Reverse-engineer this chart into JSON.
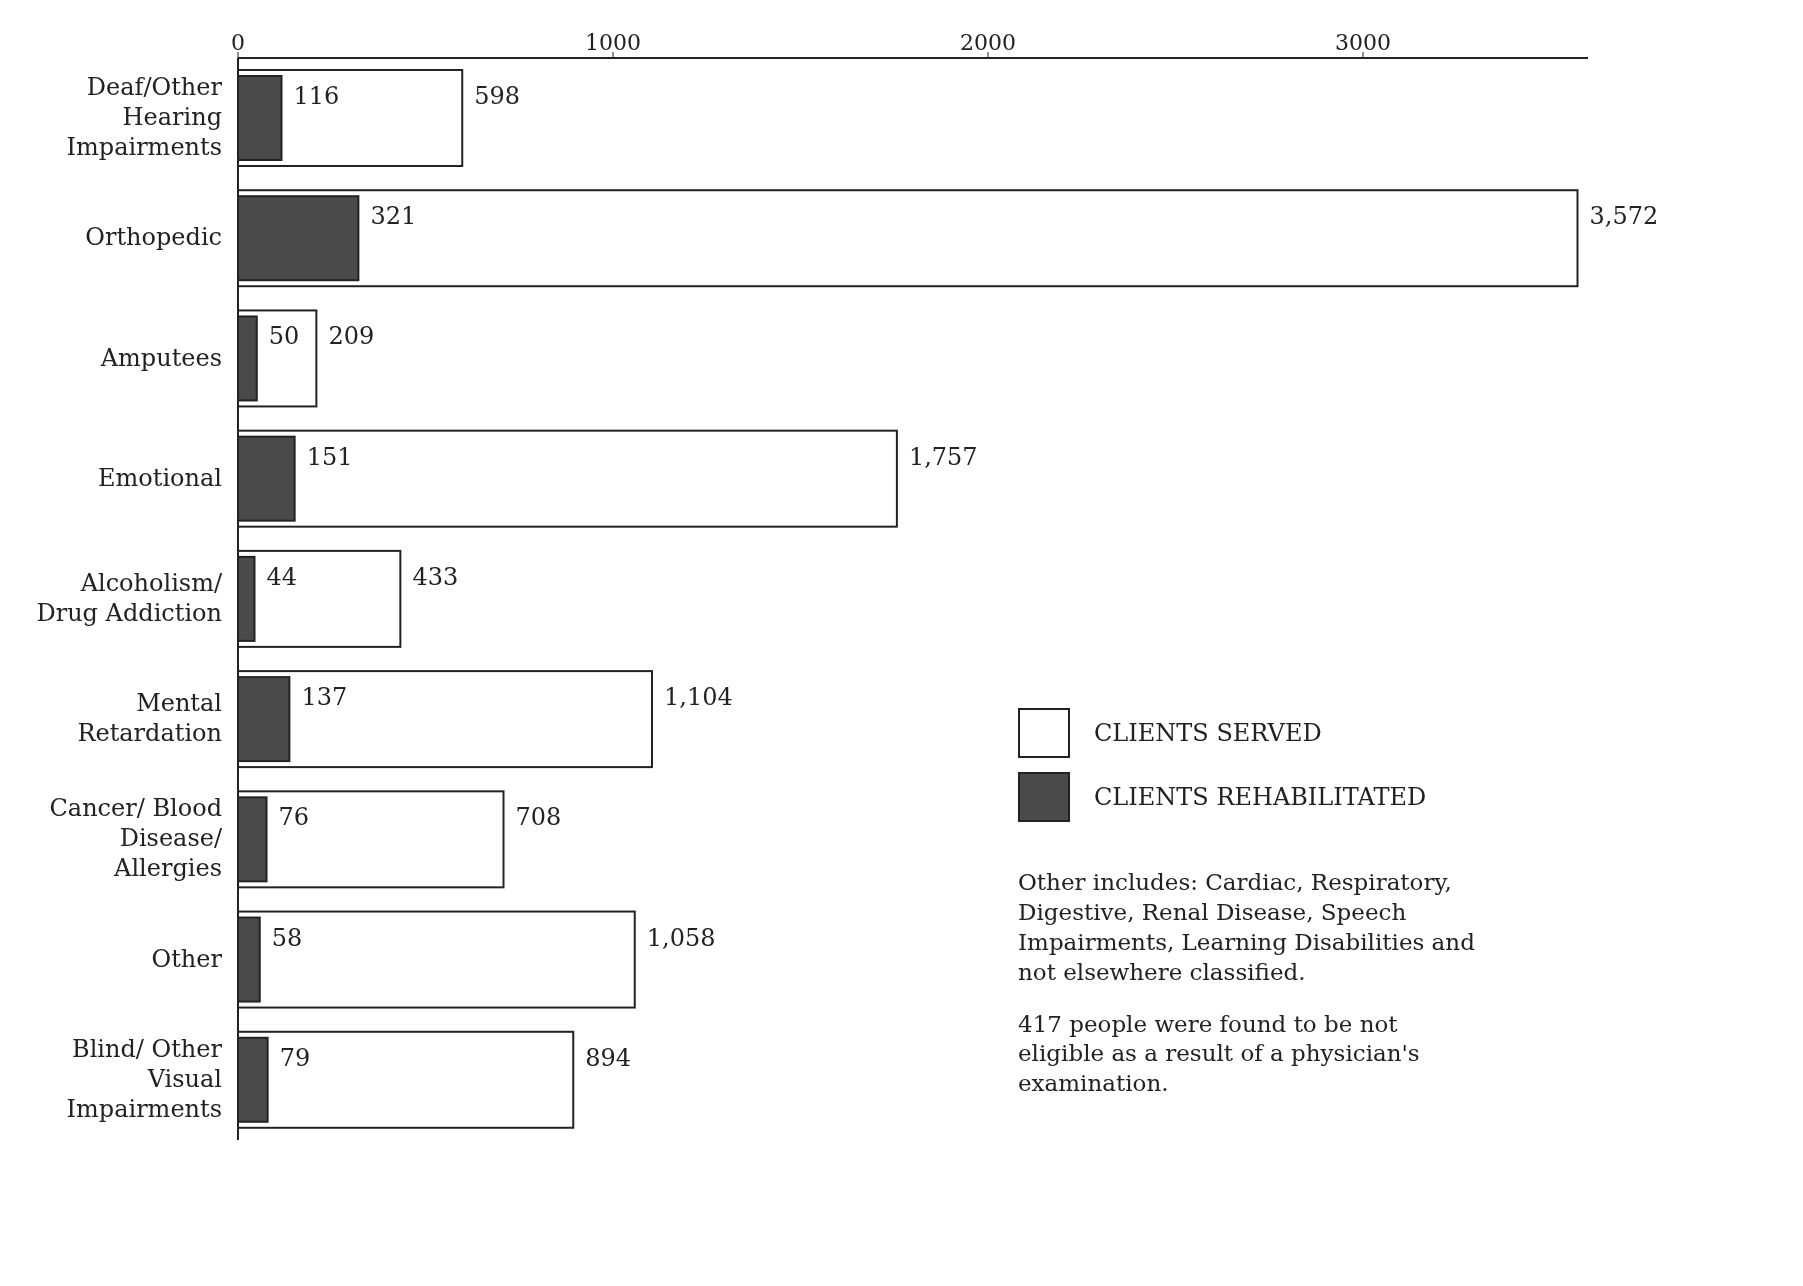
{
  "chart_data": {
    "type": "bar",
    "orientation": "horizontal",
    "categories": [
      "Deaf/Other Hearing Impairments",
      "Orthopedic",
      "Amputees",
      "Emotional",
      "Alcoholism/ Drug Addiction",
      "Mental Retardation",
      "Cancer/ Blood Disease/ Allergies",
      "Other",
      "Blind/ Other Visual Impairments"
    ],
    "series": [
      {
        "name": "CLIENTS SERVED",
        "color": "#ffffff",
        "values": [
          598,
          3572,
          209,
          1757,
          433,
          1104,
          708,
          1058,
          894
        ],
        "value_labels": [
          "598",
          "3,572",
          "209",
          "1,757",
          "433",
          "1,104",
          "708",
          "1,058",
          "894"
        ]
      },
      {
        "name": "CLIENTS REHABILITATED",
        "color": "#4a4a4a",
        "values": [
          116,
          321,
          50,
          151,
          44,
          137,
          76,
          58,
          79
        ],
        "value_labels": [
          "116",
          "321",
          "50",
          "151",
          "44",
          "137",
          "76",
          "58",
          "79"
        ]
      }
    ],
    "xlim": [
      0,
      3600
    ],
    "xticks": [
      0,
      1000,
      2000,
      3000
    ],
    "legend": "bottom right",
    "annotations": [
      "Other includes: Cardiac, Respiratory, Digestive, Renal Disease, Speech Impairments, Learning Disabilities and not elsewhere classified.",
      "417 people were found to be not eligible as a result of a physician's examination."
    ]
  }
}
